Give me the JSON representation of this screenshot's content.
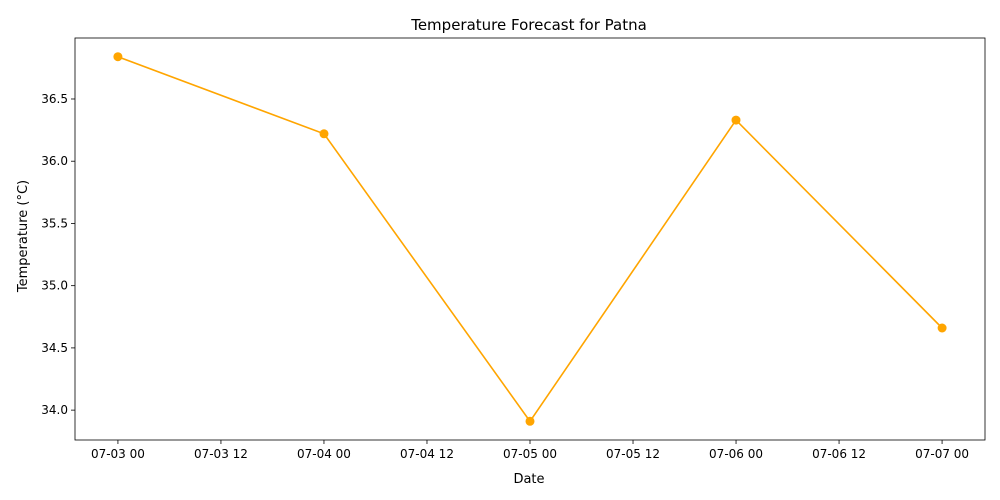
{
  "chart_data": {
    "type": "line",
    "title": "Temperature Forecast for Patna",
    "xlabel": "Date",
    "ylabel": "Temperature (°C)",
    "grid": false,
    "legend": "none",
    "series": [
      {
        "x": [
          "07-03 00",
          "07-04 00",
          "07-05 00",
          "07-06 00",
          "07-07 00"
        ],
        "values": [
          36.84,
          36.22,
          33.91,
          36.33,
          34.66
        ],
        "color": "#FFA500",
        "marker": "circle"
      }
    ],
    "x_ticks": [
      "07-03 00",
      "07-03 12",
      "07-04 00",
      "07-04 12",
      "07-05 00",
      "07-05 12",
      "07-06 00",
      "07-06 12",
      "07-07 00"
    ],
    "y_ticks": [
      "34.0",
      "34.5",
      "35.0",
      "35.5",
      "36.0",
      "36.5"
    ],
    "xlim": [
      "07-02 19",
      "07-07 05"
    ],
    "ylim": [
      33.76,
      36.99
    ]
  }
}
